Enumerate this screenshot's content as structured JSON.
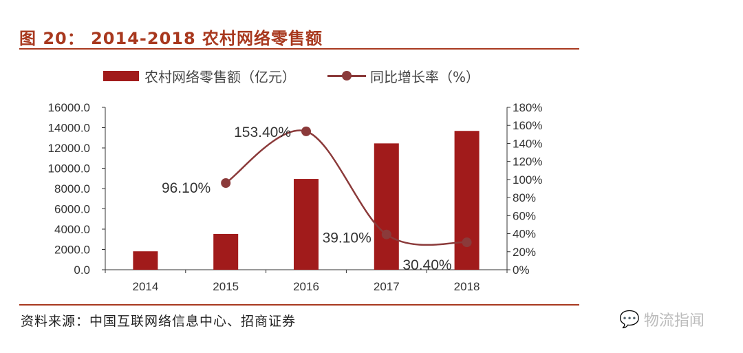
{
  "title": "图 20：  2014-2018 农村网络零售额",
  "source": "资料来源：中国互联网络信息中心、招商证券",
  "watermark": "物流指闻",
  "chart_data": {
    "type": "bar+line",
    "categories": [
      "2014",
      "2015",
      "2016",
      "2017",
      "2018"
    ],
    "series": [
      {
        "name": "农村网络零售额（亿元）",
        "type": "bar",
        "axis": "left",
        "color": "#a11b1b",
        "values": [
          1817,
          3530,
          8945,
          12449,
          13679
        ]
      },
      {
        "name": "同比增长率（%）",
        "type": "line",
        "axis": "right",
        "color": "#8b3a3a",
        "x": [
          "2015",
          "2016",
          "2017",
          "2018"
        ],
        "values": [
          96.1,
          153.4,
          39.1,
          30.4
        ],
        "labels": [
          "96.10%",
          "153.40%",
          "39.10%",
          "30.40%"
        ]
      }
    ],
    "left_axis": {
      "ylim": [
        0,
        16000
      ],
      "ticks": [
        "0.0",
        "2000.0",
        "4000.0",
        "6000.0",
        "8000.0",
        "10000.0",
        "12000.0",
        "14000.0",
        "16000.0"
      ]
    },
    "right_axis": {
      "ylim": [
        0,
        180
      ],
      "ticks": [
        "0%",
        "20%",
        "40%",
        "60%",
        "80%",
        "100%",
        "120%",
        "140%",
        "160%",
        "180%"
      ]
    },
    "grid": false,
    "legend": "top"
  }
}
